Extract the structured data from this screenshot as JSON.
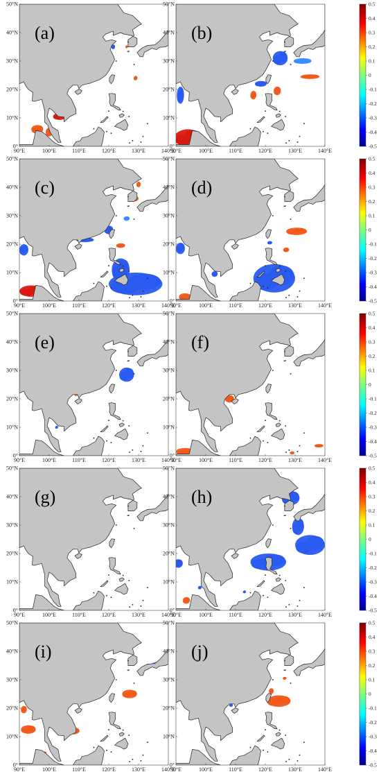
{
  "figure": {
    "x_ticks": [
      "90°E",
      "100°E",
      "110°E",
      "120°E",
      "130°E",
      "140°E"
    ],
    "y_ticks": [
      "0°",
      "10°N",
      "20°N",
      "30°N",
      "40°N",
      "50°N"
    ],
    "colorbar_ticks": [
      "0.5",
      "0.4",
      "0.3",
      "0.2",
      "0.1",
      "0",
      "-0.1",
      "-0.2",
      "-0.3",
      "-0.4",
      "-0.5"
    ],
    "colorbar_range": [
      -0.5,
      0.5
    ],
    "colors": {
      "land": "#c4c4c4",
      "ocean": "#ffffff",
      "coast": "#222222",
      "positive": "#f25a1a",
      "strong_positive": "#d81a10",
      "negative": "#2a5bf0",
      "light_negative": "#3c8cff"
    },
    "panels": [
      {
        "label": "(a)",
        "patches": [
          {
            "lon": 96,
            "lat": 6,
            "sign": "pos",
            "rx": 2,
            "ry": 1.5
          },
          {
            "lon": 103.5,
            "lat": 10.5,
            "sign": "strong",
            "rx": 2.2,
            "ry": 1.2
          },
          {
            "lon": 100,
            "lat": 5,
            "sign": "pos",
            "rx": 1.2,
            "ry": 1.5
          },
          {
            "lon": 129,
            "lat": 24,
            "sign": "pos",
            "rx": 0.6,
            "ry": 0.8
          },
          {
            "lon": 121.5,
            "lat": 35,
            "sign": "neg",
            "rx": 0.6,
            "ry": 0.8
          },
          {
            "lon": 126,
            "lat": 35,
            "sign": "pos",
            "rx": 0.4,
            "ry": 0.5
          }
        ]
      },
      {
        "label": "(b)",
        "patches": [
          {
            "lon": 94,
            "lat": 3,
            "sign": "strong",
            "rx": 4.5,
            "ry": 3
          },
          {
            "lon": 118.5,
            "lat": 22,
            "sign": "neg",
            "rx": 2,
            "ry": 1
          },
          {
            "lon": 125,
            "lat": 31,
            "sign": "neg",
            "rx": 2.5,
            "ry": 2.5
          },
          {
            "lon": 128,
            "lat": 36,
            "sign": "neg",
            "rx": 1.5,
            "ry": 0.8
          },
          {
            "lon": 132.5,
            "lat": 30,
            "sign": "light_neg",
            "rx": 3,
            "ry": 1
          },
          {
            "lon": 135,
            "lat": 24.5,
            "sign": "pos",
            "rx": 3.2,
            "ry": 0.8
          },
          {
            "lon": 116,
            "lat": 18,
            "sign": "pos",
            "rx": 1,
            "ry": 1.5
          },
          {
            "lon": 124,
            "lat": 19.5,
            "sign": "pos",
            "rx": 1.2,
            "ry": 1.5
          },
          {
            "lon": 91.5,
            "lat": 18,
            "sign": "neg",
            "rx": 1.2,
            "ry": 3
          }
        ]
      },
      {
        "label": "(c)",
        "patches": [
          {
            "lon": 94,
            "lat": 3.5,
            "sign": "strong",
            "rx": 4,
            "ry": 2
          },
          {
            "lon": 129,
            "lat": 6,
            "sign": "neg",
            "rx": 9,
            "ry": 4
          },
          {
            "lon": 124,
            "lat": 11,
            "sign": "neg",
            "rx": 3,
            "ry": 4
          },
          {
            "lon": 112,
            "lat": 21.5,
            "sign": "neg",
            "rx": 3,
            "ry": 0.8
          },
          {
            "lon": 120,
            "lat": 25,
            "sign": "neg",
            "rx": 1.5,
            "ry": 1.5
          },
          {
            "lon": 91.5,
            "lat": 18,
            "sign": "neg",
            "rx": 1.5,
            "ry": 2
          },
          {
            "lon": 128.5,
            "lat": 36,
            "sign": "pos",
            "rx": 1.5,
            "ry": 1
          },
          {
            "lon": 130,
            "lat": 41,
            "sign": "pos",
            "rx": 0.7,
            "ry": 1
          },
          {
            "lon": 124,
            "lat": 19.5,
            "sign": "pos",
            "rx": 1.5,
            "ry": 0.8
          },
          {
            "lon": 126,
            "lat": 29,
            "sign": "light_neg",
            "rx": 1,
            "ry": 0.8
          }
        ]
      },
      {
        "label": "(d)",
        "patches": [
          {
            "lon": 123,
            "lat": 8,
            "sign": "neg",
            "rx": 7,
            "ry": 5
          },
          {
            "lon": 91.5,
            "lat": 18.5,
            "sign": "neg",
            "rx": 1.5,
            "ry": 2
          },
          {
            "lon": 130.5,
            "lat": 24.5,
            "sign": "pos",
            "rx": 3.5,
            "ry": 1.3
          },
          {
            "lon": 127,
            "lat": 18,
            "sign": "pos",
            "rx": 1,
            "ry": 0.8
          },
          {
            "lon": 93,
            "lat": 1.5,
            "sign": "pos",
            "rx": 2,
            "ry": 1.2
          },
          {
            "lon": 103,
            "lat": 9.5,
            "sign": "neg",
            "rx": 1,
            "ry": 1
          },
          {
            "lon": 121.5,
            "lat": 20.5,
            "sign": "neg",
            "rx": 0.8,
            "ry": 0.6
          }
        ]
      },
      {
        "label": "(e)",
        "patches": [
          {
            "lon": 126,
            "lat": 28.5,
            "sign": "neg",
            "rx": 2.5,
            "ry": 2.5
          },
          {
            "lon": 109,
            "lat": 21.5,
            "sign": "pos",
            "rx": 0.6,
            "ry": 0.5
          },
          {
            "lon": 102.5,
            "lat": 10,
            "sign": "neg",
            "rx": 0.5,
            "ry": 0.5
          },
          {
            "lon": 120,
            "lat": 31.5,
            "sign": "neg",
            "rx": 0.6,
            "ry": 0.8
          }
        ]
      },
      {
        "label": "(f)",
        "patches": [
          {
            "lon": 108,
            "lat": 20,
            "sign": "pos",
            "rx": 1.5,
            "ry": 1.3
          },
          {
            "lon": 93,
            "lat": 1.5,
            "sign": "pos",
            "rx": 3,
            "ry": 1.2
          },
          {
            "lon": 120,
            "lat": 34.5,
            "sign": "pos",
            "rx": 0.6,
            "ry": 1.5
          },
          {
            "lon": 138,
            "lat": 3.5,
            "sign": "pos",
            "rx": 1.5,
            "ry": 0.6
          },
          {
            "lon": 129,
            "lat": 1,
            "sign": "pos",
            "rx": 0.8,
            "ry": 0.5
          }
        ]
      },
      {
        "label": "(g)",
        "patches": []
      },
      {
        "label": "(h)",
        "patches": [
          {
            "lon": 121,
            "lat": 17,
            "sign": "neg",
            "rx": 6,
            "ry": 3
          },
          {
            "lon": 135,
            "lat": 23,
            "sign": "neg",
            "rx": 5,
            "ry": 3.5
          },
          {
            "lon": 128.5,
            "lat": 39.5,
            "sign": "neg",
            "rx": 3,
            "ry": 2.5
          },
          {
            "lon": 131,
            "lat": 29.5,
            "sign": "neg",
            "rx": 2,
            "ry": 3
          },
          {
            "lon": 90.8,
            "lat": 16.5,
            "sign": "neg",
            "rx": 1.5,
            "ry": 1.5
          },
          {
            "lon": 93.5,
            "lat": 3.5,
            "sign": "pos",
            "rx": 1.2,
            "ry": 1.2
          },
          {
            "lon": 98,
            "lat": 8,
            "sign": "neg",
            "rx": 0.6,
            "ry": 0.6
          },
          {
            "lon": 113,
            "lat": 6.5,
            "sign": "neg",
            "rx": 0.5,
            "ry": 0.5
          }
        ]
      },
      {
        "label": "(i)",
        "patches": [
          {
            "lon": 127,
            "lat": 25,
            "sign": "pos",
            "rx": 2.5,
            "ry": 1.5
          },
          {
            "lon": 108,
            "lat": 12,
            "sign": "pos",
            "rx": 2.2,
            "ry": 1.2
          },
          {
            "lon": 93,
            "lat": 12.5,
            "sign": "pos",
            "rx": 2.5,
            "ry": 1.5
          },
          {
            "lon": 91.5,
            "lat": 19.5,
            "sign": "pos",
            "rx": 1,
            "ry": 1.3
          },
          {
            "lon": 98.5,
            "lat": 4,
            "sign": "pos",
            "rx": 0.6,
            "ry": 0.8
          },
          {
            "lon": 122,
            "lat": 42.5,
            "sign": "light_neg",
            "rx": 0.8,
            "ry": 0.6
          },
          {
            "lon": 136.5,
            "lat": 35.5,
            "sign": "light_neg",
            "rx": 2,
            "ry": 0.8
          }
        ]
      },
      {
        "label": "(j)",
        "patches": [
          {
            "lon": 124.5,
            "lat": 22.5,
            "sign": "pos",
            "rx": 4,
            "ry": 2
          },
          {
            "lon": 122,
            "lat": 26,
            "sign": "pos",
            "rx": 0.8,
            "ry": 1
          },
          {
            "lon": 108.5,
            "lat": 21,
            "sign": "neg",
            "rx": 0.6,
            "ry": 0.5
          },
          {
            "lon": 126.5,
            "lat": 30.5,
            "sign": "pos",
            "rx": 0.6,
            "ry": 0.5
          }
        ]
      }
    ]
  }
}
